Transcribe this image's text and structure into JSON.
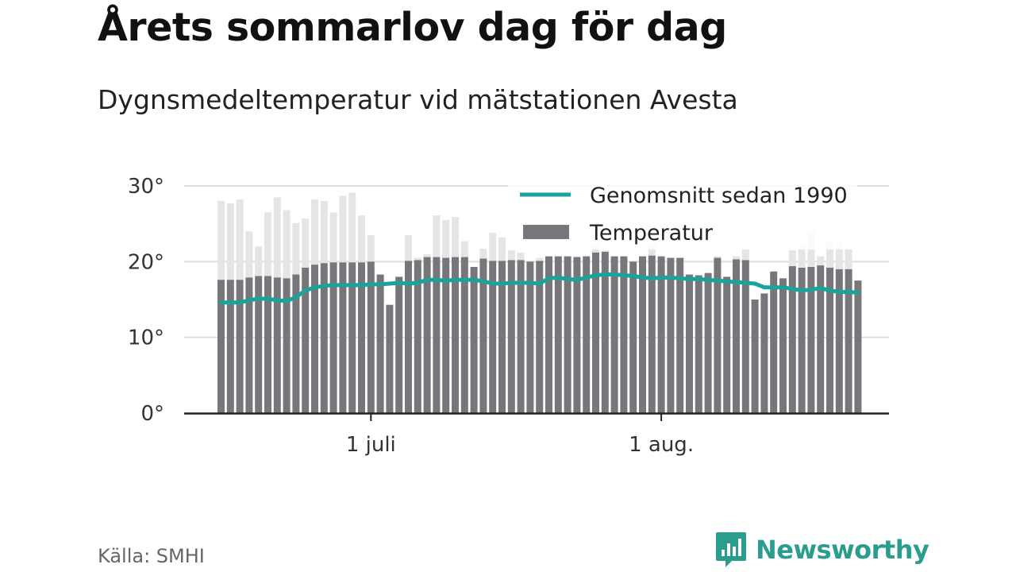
{
  "title": "Årets sommarlov dag för dag",
  "subtitle": "Dygnsmedeltemperatur vid mätstationen Avesta",
  "source": "Källa: SMHI",
  "brand": {
    "name": "Newsworthy",
    "icon": "newsworthy-logo-icon",
    "color": "#2a9d8f"
  },
  "chart_data": {
    "type": "bar",
    "ylim": [
      0,
      30
    ],
    "yticks": [
      "0°",
      "10°",
      "20°",
      "30°"
    ],
    "ytick_values": [
      0,
      10,
      20,
      30
    ],
    "xtick_labels": [
      "1 juli",
      "1 aug."
    ],
    "xtick_indices": [
      16,
      47
    ],
    "grid": true,
    "legend_position": "top-right",
    "colors": {
      "temperature": "#77767b",
      "average": "#1aa39a",
      "faded": "#e5e5e5",
      "grid": "#dddddd"
    },
    "legend": [
      "Genomsnitt sedan 1990",
      "Temperatur"
    ],
    "series": [
      {
        "name": "Temperatur",
        "type": "bar",
        "values": [
          28.0,
          27.7,
          28.2,
          24.0,
          22.0,
          26.5,
          28.5,
          26.8,
          25.1,
          25.7,
          28.2,
          28.0,
          26.5,
          28.7,
          29.1,
          26.1,
          23.5,
          18.3,
          14.3,
          18.0,
          23.5,
          20.5,
          21.0,
          26.1,
          25.5,
          25.9,
          22.7,
          19.3,
          21.7,
          23.8,
          23.2,
          21.5,
          21.2,
          20.0,
          20.5,
          20.7,
          20.7,
          20.7,
          20.7,
          20.7,
          22.3,
          21.5,
          20.7,
          20.7,
          20.0,
          20.7,
          22.4,
          20.7,
          20.5,
          20.5,
          18.3,
          18.2,
          18.5,
          20.7,
          18.0,
          20.7,
          21.7,
          15.0,
          15.8,
          18.7,
          17.8,
          21.5,
          22.2,
          24.0,
          20.7,
          22.7,
          22.5,
          21.7,
          17.5
        ]
      },
      {
        "name": "Genomsnitt sedan 1990",
        "type": "line",
        "values": [
          14.6,
          14.6,
          14.6,
          14.9,
          15.1,
          15.1,
          14.9,
          14.8,
          15.3,
          16.2,
          16.6,
          16.8,
          16.9,
          16.9,
          16.9,
          16.9,
          17.0,
          17.0,
          17.1,
          17.2,
          17.1,
          17.2,
          17.6,
          17.6,
          17.5,
          17.6,
          17.6,
          17.6,
          17.4,
          17.1,
          17.1,
          17.2,
          17.2,
          17.2,
          17.1,
          17.8,
          17.9,
          17.7,
          17.6,
          17.9,
          18.2,
          18.3,
          18.3,
          18.2,
          18.1,
          17.9,
          17.8,
          17.9,
          17.9,
          17.8,
          17.7,
          17.7,
          17.6,
          17.5,
          17.4,
          17.3,
          17.2,
          17.1,
          16.6,
          16.6,
          16.6,
          16.4,
          16.2,
          16.3,
          16.5,
          16.2,
          16.0,
          16.0,
          15.9
        ]
      }
    ]
  }
}
